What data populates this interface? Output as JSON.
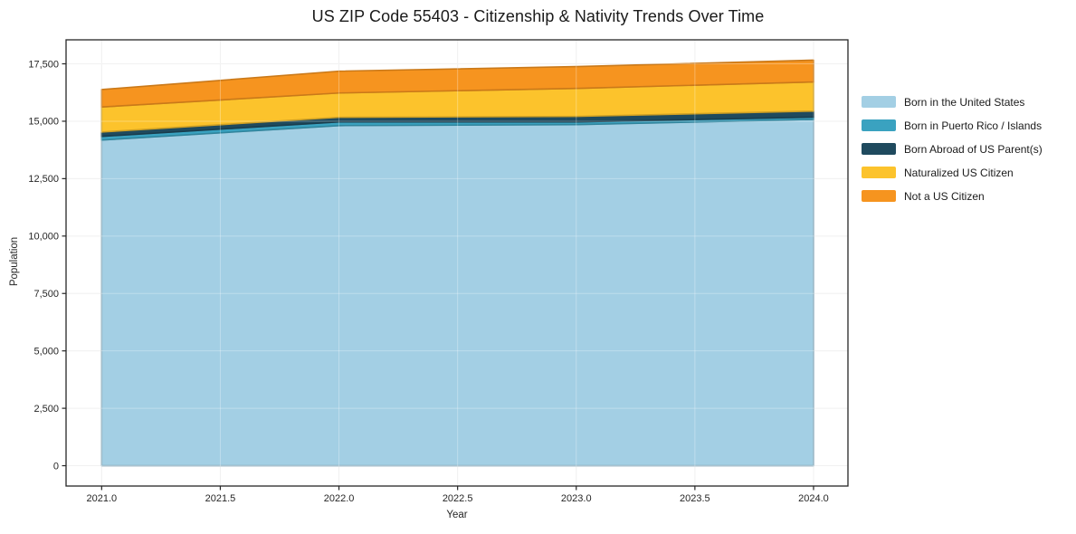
{
  "chart_data": {
    "type": "area",
    "stacked": true,
    "title": "US ZIP Code 55403 - Citizenship & Nativity Trends Over Time",
    "xlabel": "Year",
    "ylabel": "Population",
    "x": [
      2021,
      2022,
      2023,
      2024
    ],
    "series": [
      {
        "name": "Born in the United States",
        "color": "#a3cfe4",
        "values": [
          14180,
          14810,
          14850,
          15080
        ]
      },
      {
        "name": "Born in Puerto Rico / Islands",
        "color": "#3aa2c0",
        "values": [
          160,
          160,
          120,
          100
        ]
      },
      {
        "name": "Born Abroad of US Parent(s)",
        "color": "#1f4a5e",
        "values": [
          190,
          200,
          240,
          260
        ]
      },
      {
        "name": "Naturalized US Citizen",
        "color": "#fcc32c",
        "values": [
          1090,
          1060,
          1220,
          1270
        ]
      },
      {
        "name": "Not a US Citizen",
        "color": "#f6941f",
        "values": [
          760,
          950,
          950,
          950
        ]
      }
    ],
    "xlim": [
      2020.85,
      2024.145
    ],
    "ylim": [
      -885,
      18545
    ],
    "xticks": {
      "values": [
        2021,
        2021.5,
        2022,
        2022.5,
        2023,
        2023.5,
        2024
      ],
      "labels": [
        "2021.0",
        "2021.5",
        "2022.0",
        "2022.5",
        "2023.0",
        "2023.5",
        "2024.0"
      ]
    },
    "yticks": {
      "values": [
        0,
        2500,
        5000,
        7500,
        10000,
        12500,
        15000,
        17500
      ],
      "labels": [
        "0",
        "2,500",
        "5,000",
        "7,500",
        "10,000",
        "12,500",
        "15,000",
        "17,500"
      ]
    },
    "grid": true,
    "legend_position": "right"
  }
}
